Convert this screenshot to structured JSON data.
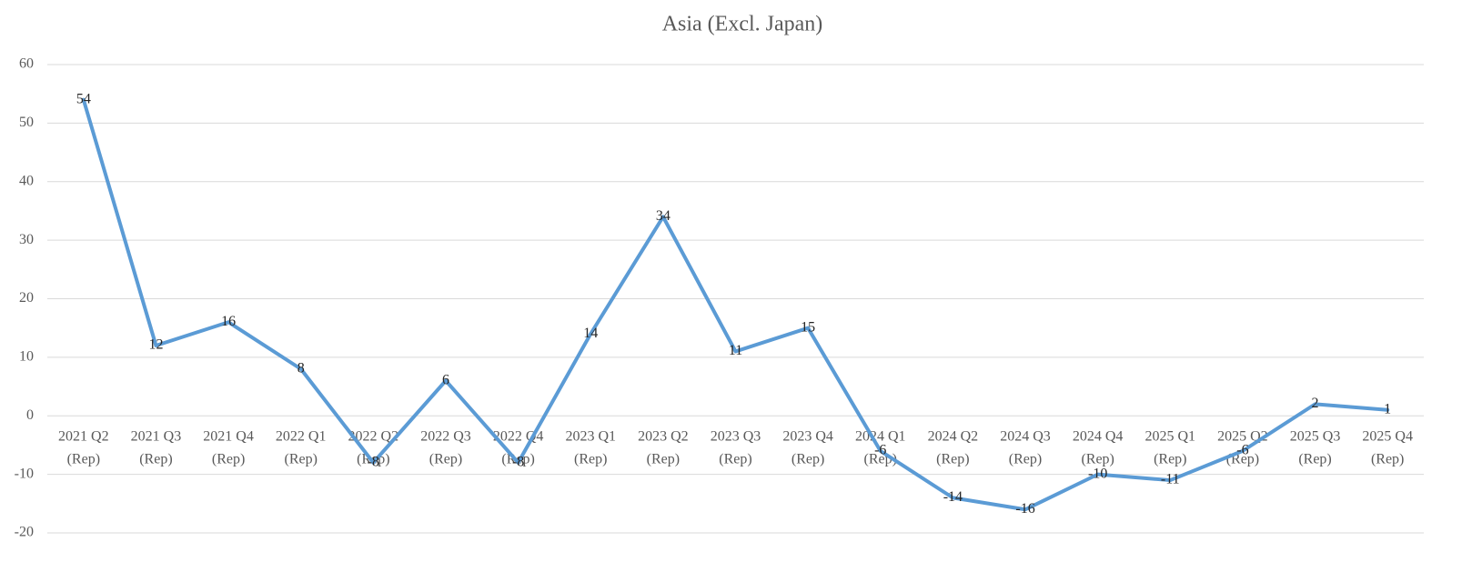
{
  "chart_data": {
    "type": "line",
    "title": "Asia (Excl. Japan)",
    "categories": [
      "2021 Q2 (Rep)",
      "2021 Q3 (Rep)",
      "2021 Q4 (Rep)",
      "2022 Q1 (Rep)",
      "2022 Q2 (Rep)",
      "2022 Q3 (Rep)",
      "2022 Q4 (Rep)",
      "2023 Q1 (Rep)",
      "2023 Q2 (Rep)",
      "2023 Q3 (Rep)",
      "2023 Q4 (Rep)",
      "2024 Q1 (Rep)",
      "2024 Q2 (Rep)",
      "2024 Q3 (Rep)",
      "2024 Q4 (Rep)",
      "2025 Q1 (Rep)",
      "2025 Q2 (Rep)",
      "2025 Q3 (Rep)",
      "2025 Q4 (Rep)"
    ],
    "values": [
      54,
      12,
      16,
      8,
      -8,
      6,
      -8,
      14,
      34,
      11,
      15,
      -6,
      -14,
      -16,
      -10,
      -11,
      -6,
      2,
      1
    ],
    "color": "#5b9bd5",
    "ylim": [
      -20,
      60
    ],
    "yticks": [
      -20,
      -10,
      0,
      10,
      20,
      30,
      40,
      50,
      60
    ],
    "grid": true
  }
}
